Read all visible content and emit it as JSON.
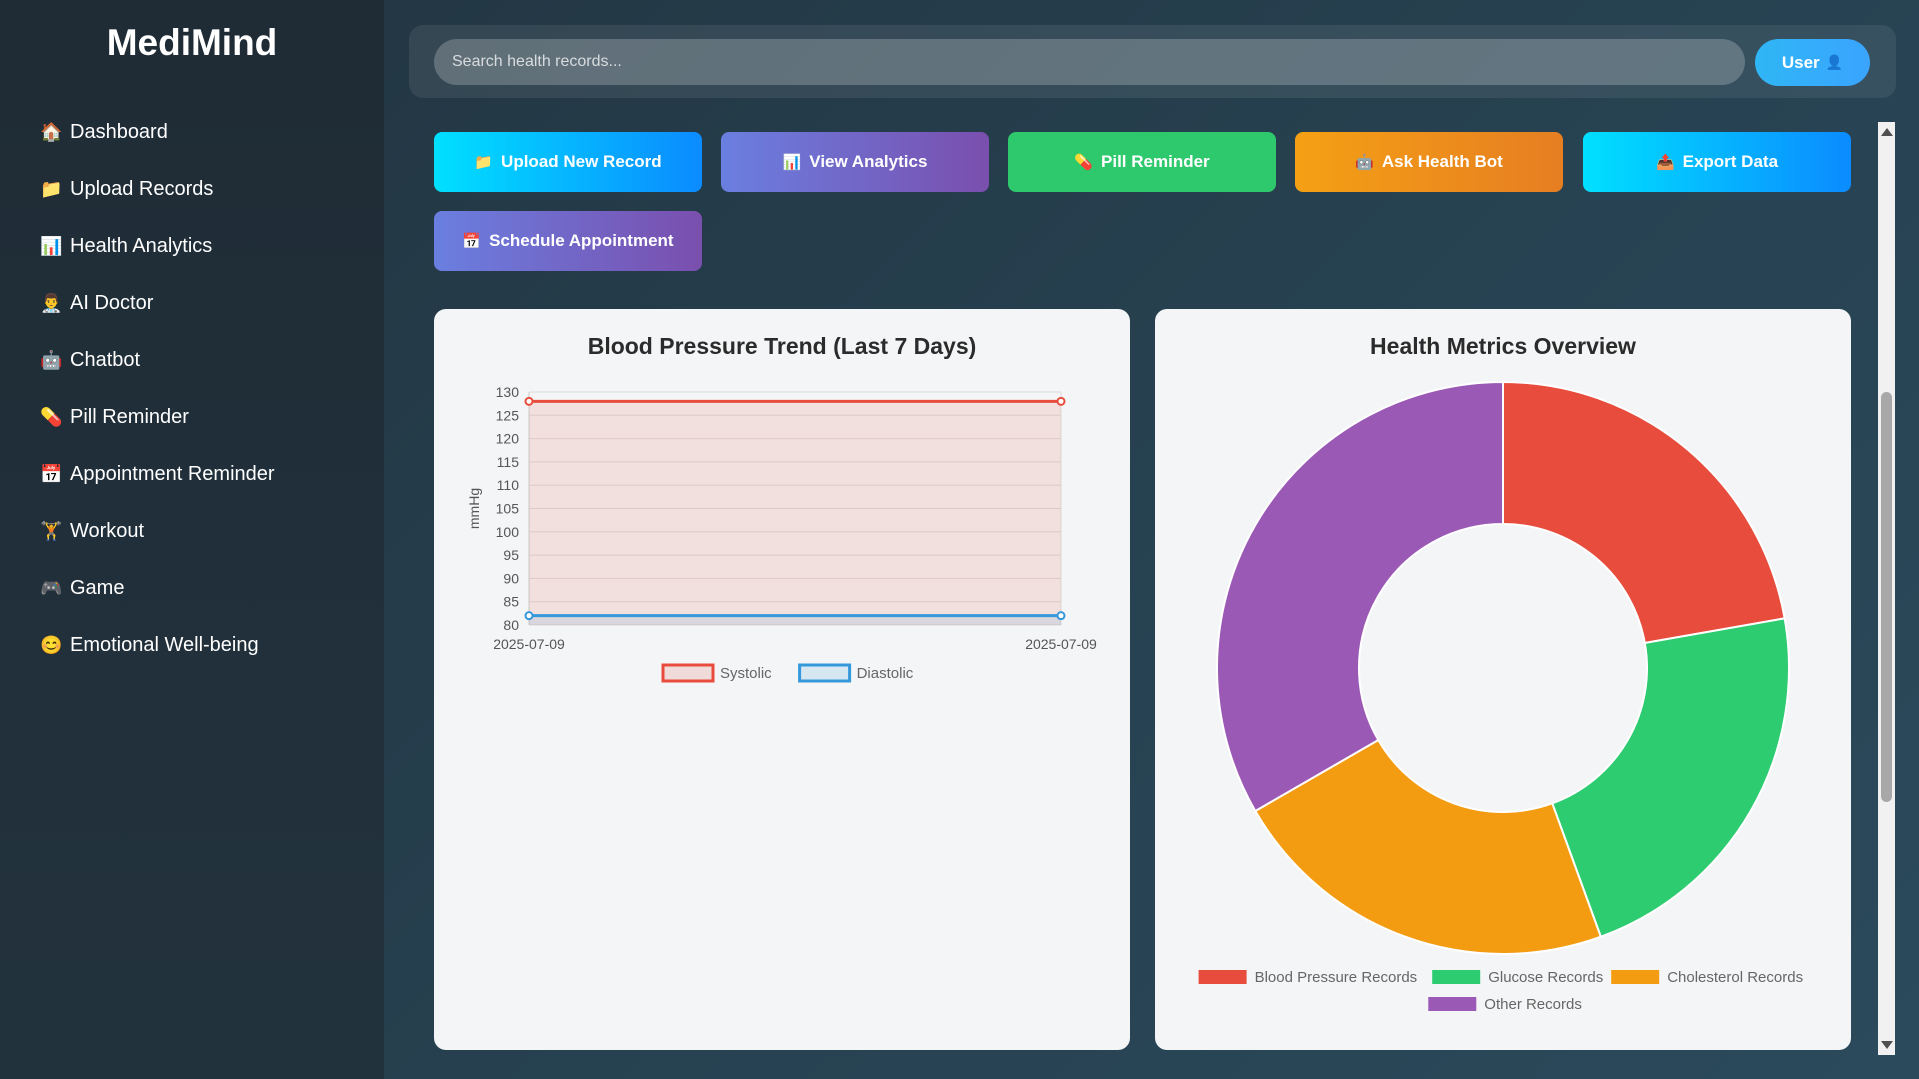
{
  "app": {
    "title": "MediMind"
  },
  "sidebar": {
    "items": [
      {
        "icon": "🏠",
        "label": "Dashboard"
      },
      {
        "icon": "📁",
        "label": "Upload Records"
      },
      {
        "icon": "📊",
        "label": "Health Analytics"
      },
      {
        "icon": "👨‍⚕️",
        "label": "AI Doctor"
      },
      {
        "icon": "🤖",
        "label": "Chatbot"
      },
      {
        "icon": "💊",
        "label": "Pill Reminder"
      },
      {
        "icon": "📅",
        "label": "Appointment Reminder"
      },
      {
        "icon": "🏋️",
        "label": "Workout"
      },
      {
        "icon": "🎮",
        "label": "Game"
      },
      {
        "icon": "😊",
        "label": "Emotional Well-being"
      }
    ]
  },
  "header": {
    "search_placeholder": "Search health records...",
    "user_label": "User",
    "user_icon": "👤"
  },
  "actions": [
    {
      "icon": "📁",
      "label": "Upload New Record"
    },
    {
      "icon": "📊",
      "label": "View Analytics"
    },
    {
      "icon": "💊",
      "label": "Pill Reminder"
    },
    {
      "icon": "🤖",
      "label": "Ask Health Bot"
    },
    {
      "icon": "📤",
      "label": "Export Data"
    },
    {
      "icon": "📅",
      "label": "Schedule Appointment"
    }
  ],
  "colors": {
    "systolic": "#e74c3c",
    "diastolic": "#3498db",
    "bp_records": "#e74c3c",
    "glucose": "#2ecc71",
    "cholesterol": "#f39c12",
    "other": "#9b59b6"
  },
  "chart_data": [
    {
      "type": "line",
      "title": "Blood Pressure Trend (Last 7 Days)",
      "x": [
        "2025-07-09",
        "2025-07-09"
      ],
      "ylabel": "mmHg",
      "ylim": [
        80,
        130
      ],
      "yticks": [
        130,
        125,
        120,
        115,
        110,
        105,
        100,
        95,
        90,
        85,
        80
      ],
      "grid": true,
      "legend": "bottom",
      "series": [
        {
          "name": "Systolic",
          "values": [
            128,
            128
          ],
          "color": "#e74c3c"
        },
        {
          "name": "Diastolic",
          "values": [
            82,
            82
          ],
          "color": "#3498db"
        }
      ]
    },
    {
      "type": "pie",
      "title": "Health Metrics Overview",
      "donut": true,
      "legend": "bottom",
      "categories": [
        "Blood Pressure Records",
        "Glucose Records",
        "Cholesterol Records",
        "Other Records"
      ],
      "values": [
        2,
        2,
        2,
        3
      ],
      "colors": [
        "#e74c3c",
        "#2ecc71",
        "#f39c12",
        "#9b59b6"
      ]
    }
  ]
}
